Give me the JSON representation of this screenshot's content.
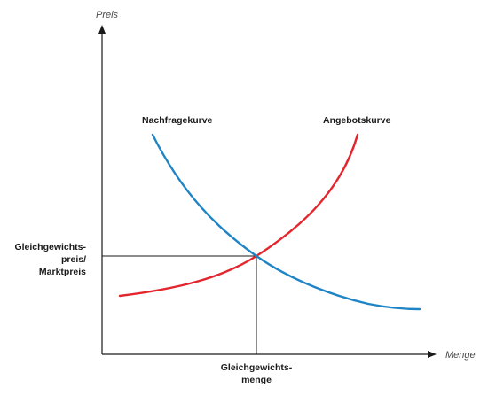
{
  "axes": {
    "y_label": "Preis",
    "x_label": "Menge"
  },
  "curves": {
    "demand_label": "Nachfragekurve",
    "supply_label": "Angebotskurve"
  },
  "equilibrium": {
    "price_label_lines": [
      "Gleichgewichts-",
      "preis/",
      "Marktpreis"
    ],
    "quantity_label_lines": [
      "Gleichgewichts-",
      "menge"
    ]
  },
  "colors": {
    "demand": "#1f84c6",
    "supply": "#e3262e",
    "axis": "#1a1a1a"
  }
}
